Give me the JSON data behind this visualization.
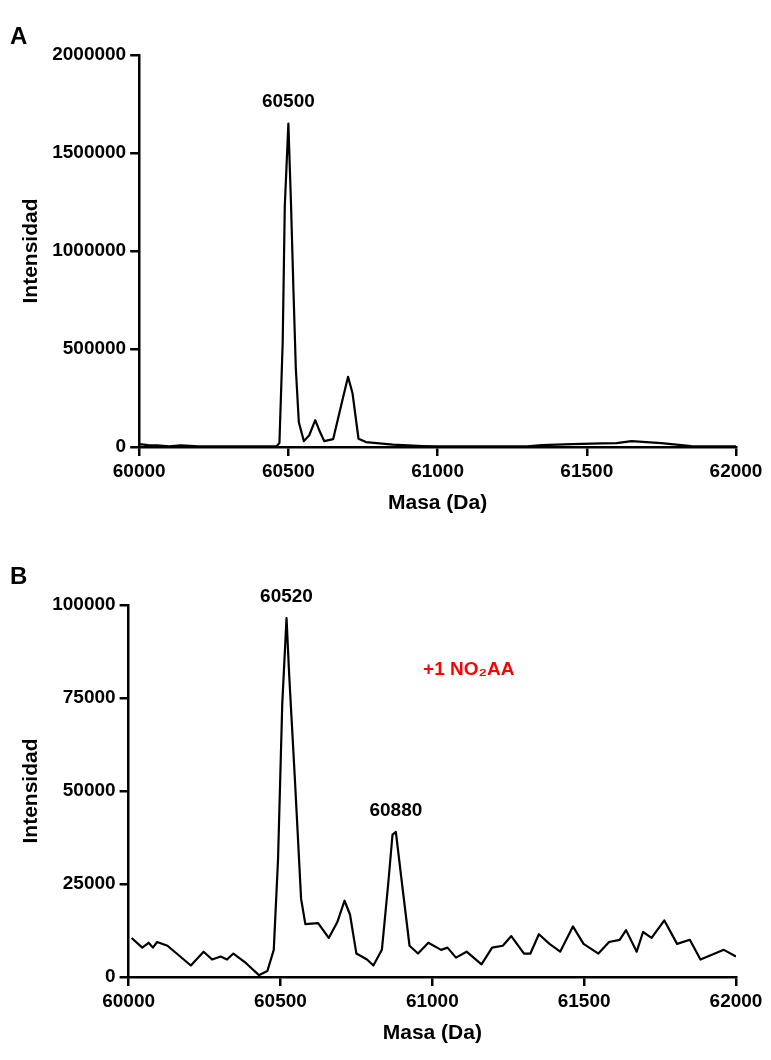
{
  "chart_data": [
    {
      "type": "line",
      "title": "A",
      "xlabel": "Masa (Da)",
      "ylabel": "Intensidad",
      "xlim": [
        60000,
        62000
      ],
      "xticks": [
        60000,
        60500,
        61000,
        61500,
        62000
      ],
      "ylim": [
        0,
        2000000
      ],
      "yticks": [
        0,
        500000,
        1000000,
        1500000,
        2000000
      ],
      "grid": false,
      "legend": false,
      "marker": "none",
      "line_style": "solid",
      "annotations": [
        {
          "text": "60500",
          "x": 60500,
          "y": 1650000
        }
      ],
      "series": [
        {
          "color": "#000000",
          "x": [
            60000,
            60030,
            60060,
            60100,
            60140,
            60200,
            60300,
            60400,
            60460,
            60470,
            60481,
            60488,
            60500,
            60509,
            60517,
            60525,
            60535,
            60552,
            60570,
            60590,
            60605,
            60620,
            60650,
            60680,
            60700,
            60715,
            60735,
            60760,
            60850,
            60950,
            61000,
            61300,
            61350,
            61450,
            61550,
            61600,
            61650,
            61700,
            61750,
            61800,
            61850,
            61900,
            62000
          ],
          "values": [
            15000,
            10000,
            8000,
            3000,
            8000,
            3000,
            3000,
            3000,
            3000,
            20000,
            537000,
            1230000,
            1650000,
            1230000,
            800000,
            400000,
            126000,
            30000,
            60000,
            137000,
            80000,
            30000,
            40000,
            232000,
            358000,
            274000,
            42000,
            25000,
            12000,
            5000,
            3000,
            3000,
            10000,
            15000,
            18000,
            20000,
            30000,
            25000,
            20000,
            12000,
            5000,
            3000,
            3000
          ]
        }
      ]
    },
    {
      "type": "line",
      "title": "B",
      "xlabel": "Masa (Da)",
      "ylabel": "Intensidad",
      "xlim": [
        60000,
        62000
      ],
      "xticks": [
        60000,
        60500,
        61000,
        61500,
        62000
      ],
      "ylim": [
        0,
        100000
      ],
      "yticks": [
        0,
        25000,
        50000,
        75000,
        100000
      ],
      "grid": false,
      "legend": false,
      "marker": "none",
      "line_style": "solid",
      "annotations": [
        {
          "text": "60520",
          "x": 60520,
          "y": 96500
        },
        {
          "text": "60880",
          "x": 60880,
          "y": 39000
        },
        "+1 NO₂AA"
      ],
      "series": [
        {
          "color": "#000000",
          "x": [
            60010,
            60045,
            60066,
            60080,
            60094,
            60128,
            60205,
            60247,
            60275,
            60303,
            60324,
            60345,
            60387,
            60429,
            60457,
            60478,
            60492,
            60506,
            60520,
            60529,
            60548,
            60568,
            60582,
            60624,
            60659,
            60687,
            60711,
            60729,
            60750,
            60785,
            60806,
            60834,
            60855,
            60869,
            60880,
            60897,
            60925,
            60953,
            60987,
            61029,
            61050,
            61078,
            61113,
            61162,
            61197,
            61232,
            61260,
            61302,
            61323,
            61351,
            61386,
            61421,
            61463,
            61498,
            61547,
            61582,
            61617,
            61638,
            61673,
            61694,
            61722,
            61764,
            61806,
            61848,
            61883,
            61960,
            62000
          ],
          "values": [
            10500,
            7900,
            9200,
            7900,
            9400,
            8400,
            3100,
            6800,
            4700,
            5500,
            4700,
            6300,
            3700,
            500,
            1600,
            7300,
            31500,
            73500,
            96500,
            80800,
            52500,
            21000,
            14200,
            14500,
            10500,
            14700,
            20500,
            16800,
            6300,
            4700,
            3100,
            7300,
            25200,
            38300,
            39000,
            27300,
            8400,
            6300,
            9200,
            7300,
            7900,
            5200,
            6800,
            3400,
            7900,
            8400,
            11000,
            6300,
            6300,
            11500,
            8900,
            6800,
            13600,
            8900,
            6300,
            9400,
            10000,
            12600,
            6800,
            12100,
            10500,
            15200,
            8900,
            10000,
            4700,
            7300,
            5500
          ]
        }
      ]
    }
  ]
}
